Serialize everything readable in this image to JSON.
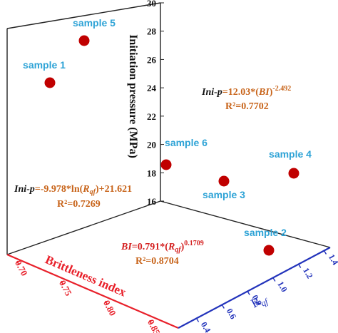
{
  "chart_data": {
    "type": "scatter",
    "title": "",
    "axes": {
      "z": {
        "label": "Initiation pressure (MPa)",
        "range": [
          16,
          30
        ],
        "ticks": [
          "16",
          "18",
          "20",
          "22",
          "24",
          "26",
          "28",
          "30"
        ]
      },
      "x": {
        "label": "Brittleness index",
        "range": [
          0.7,
          0.85
        ],
        "ticks": [
          "0.70",
          "0.75",
          "0.80",
          "0.85"
        ]
      },
      "y": {
        "label_main": "R",
        "label_sub": "qf",
        "range": [
          0.4,
          1.4
        ],
        "ticks": [
          "0.4",
          "0.6",
          "0.8",
          "1.0",
          "1.2",
          "1.4"
        ]
      }
    },
    "points": [
      {
        "label": "sample 5",
        "brittleness_index": 0.72,
        "r_qf": 1.32,
        "initiation_pressure": 27.5
      },
      {
        "label": "sample 1",
        "brittleness_index": 0.73,
        "r_qf": 1.28,
        "initiation_pressure": 24.4
      },
      {
        "label": "sample 6",
        "brittleness_index": 0.78,
        "r_qf": 1.38,
        "initiation_pressure": 18.6
      },
      {
        "label": "sample 3",
        "brittleness_index": 0.8,
        "r_qf": 1.3,
        "initiation_pressure": 17.5
      },
      {
        "label": "sample 4",
        "brittleness_index": 0.82,
        "r_qf": 1.39,
        "initiation_pressure": 18.0
      },
      {
        "label": "sample 2",
        "brittleness_index": 0.84,
        "r_qf": 1.1,
        "initiation_pressure": 16.2
      }
    ],
    "colors": {
      "point": "#c00000",
      "point_label": "#2ea3d6",
      "x_axis": "#e8202a",
      "y_axis": "#2233bb",
      "z_axis": "#111111",
      "equation_dark": "#111111",
      "equation_red": "#d42020",
      "equation_orange": "#c8641a"
    },
    "equations": [
      {
        "id": "bi",
        "line1_a": "Ini-p",
        "line1_b": "=12.03*(",
        "line1_c": "BI",
        "line1_d": ")",
        "line1_sup": "-2.492",
        "line2": "R²=0.7702"
      },
      {
        "id": "rqf",
        "line1_a": "Ini-p",
        "line1_b": "=-9.978*ln(",
        "line1_c": "R",
        "line1_sub": "qf",
        "line1_d": ")+21.621",
        "line2": "R²=0.7269"
      },
      {
        "id": "bi-rqf",
        "line1_a": "BI",
        "line1_b": "=0.791*(",
        "line1_c": "R",
        "line1_sub": "qf",
        "line1_d": ")",
        "line1_sup": "0.1709",
        "line2": "R²=0.8704"
      }
    ]
  }
}
